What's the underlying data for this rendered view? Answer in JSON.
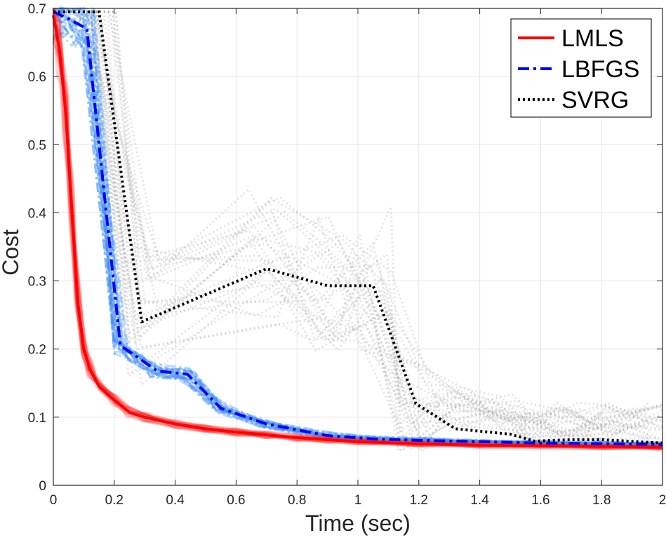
{
  "chart_data": {
    "type": "line",
    "xlabel": "Time (sec)",
    "ylabel": "Cost",
    "xlim": [
      0,
      2
    ],
    "ylim": [
      0,
      0.7
    ],
    "xticks": [
      "0",
      "0.2",
      "0.4",
      "0.6",
      "0.8",
      "1",
      "1.2",
      "1.4",
      "1.6",
      "1.8",
      "2"
    ],
    "yticks": [
      "0",
      "0.1",
      "0.2",
      "0.3",
      "0.4",
      "0.5",
      "0.6",
      "0.7"
    ],
    "grid": true,
    "legend_position": "top-right",
    "series": [
      {
        "name": "LMLS",
        "color": "#ff0000",
        "style": "solid",
        "points": [
          [
            0,
            0.69
          ],
          [
            0.02,
            0.64
          ],
          [
            0.04,
            0.55
          ],
          [
            0.06,
            0.41
          ],
          [
            0.08,
            0.27
          ],
          [
            0.1,
            0.2
          ],
          [
            0.12,
            0.17
          ],
          [
            0.15,
            0.145
          ],
          [
            0.2,
            0.125
          ],
          [
            0.25,
            0.107
          ],
          [
            0.3,
            0.1
          ],
          [
            0.4,
            0.09
          ],
          [
            0.5,
            0.083
          ],
          [
            0.6,
            0.078
          ],
          [
            0.7,
            0.074
          ],
          [
            0.8,
            0.07
          ],
          [
            0.9,
            0.067
          ],
          [
            1.0,
            0.064
          ],
          [
            1.2,
            0.061
          ],
          [
            1.4,
            0.059
          ],
          [
            1.6,
            0.058
          ],
          [
            1.8,
            0.057
          ],
          [
            2.0,
            0.056
          ]
        ]
      },
      {
        "name": "LBFGS",
        "color": "#0000ff",
        "style": "dashdot",
        "points": [
          [
            0,
            0.695
          ],
          [
            0.05,
            0.685
          ],
          [
            0.11,
            0.67
          ],
          [
            0.22,
            0.205
          ],
          [
            0.27,
            0.19
          ],
          [
            0.34,
            0.168
          ],
          [
            0.44,
            0.163
          ],
          [
            0.55,
            0.113
          ],
          [
            0.7,
            0.09
          ],
          [
            0.9,
            0.073
          ],
          [
            1.05,
            0.068
          ],
          [
            1.2,
            0.066
          ],
          [
            1.4,
            0.064
          ],
          [
            1.6,
            0.062
          ],
          [
            1.8,
            0.061
          ],
          [
            2.0,
            0.06
          ]
        ]
      },
      {
        "name": "SVRG",
        "color": "#000000",
        "style": "dotted",
        "points": [
          [
            0,
            0.695
          ],
          [
            0.15,
            0.695
          ],
          [
            0.29,
            0.24
          ],
          [
            0.7,
            0.318
          ],
          [
            0.9,
            0.293
          ],
          [
            1.05,
            0.293
          ],
          [
            1.19,
            0.12
          ],
          [
            1.32,
            0.083
          ],
          [
            1.5,
            0.075
          ],
          [
            1.58,
            0.065
          ],
          [
            1.7,
            0.067
          ],
          [
            1.8,
            0.067
          ],
          [
            2.0,
            0.062
          ]
        ]
      }
    ]
  }
}
